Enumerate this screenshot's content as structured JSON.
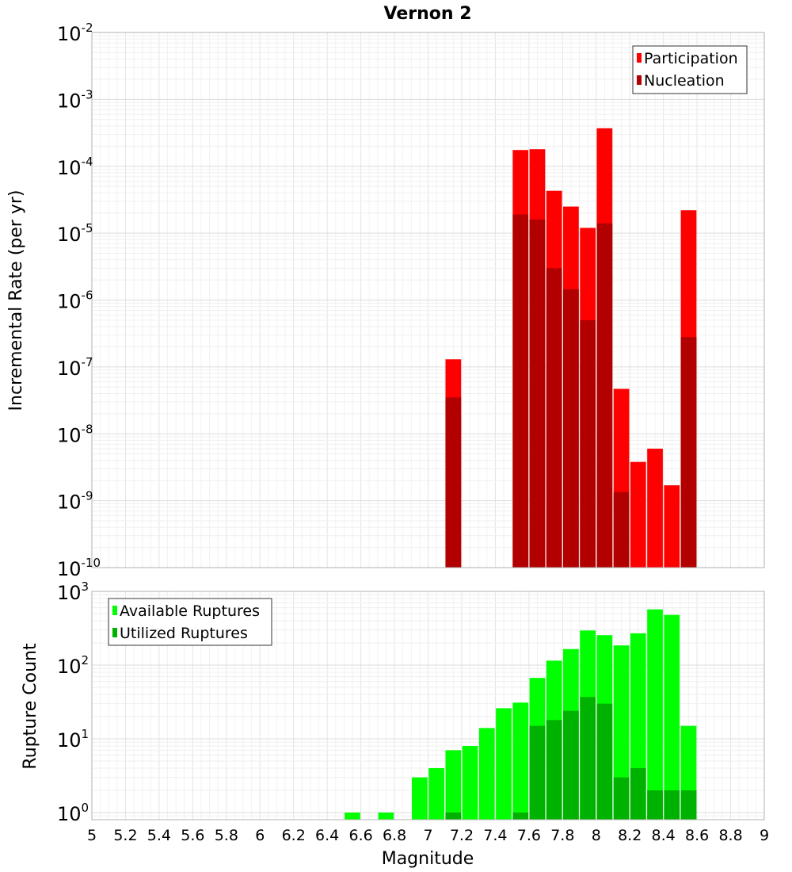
{
  "chart_data": [
    {
      "type": "bar",
      "title": "Vernon 2",
      "ylabel": "Incremental Rate (per yr)",
      "yscale": "log",
      "ylim": [
        1e-10,
        0.01
      ],
      "xlim": [
        5,
        9
      ],
      "grid": true,
      "legend_position": "top-right",
      "x": [
        7.15,
        7.55,
        7.65,
        7.75,
        7.85,
        7.95,
        8.05,
        8.15,
        8.25,
        8.35,
        8.45,
        8.55
      ],
      "y_tick_labels": [
        {
          "base": "10",
          "exp": "-10"
        },
        {
          "base": "10",
          "exp": "-9"
        },
        {
          "base": "10",
          "exp": "-8"
        },
        {
          "base": "10",
          "exp": "-7"
        },
        {
          "base": "10",
          "exp": "-6"
        },
        {
          "base": "10",
          "exp": "-5"
        },
        {
          "base": "10",
          "exp": "-4"
        },
        {
          "base": "10",
          "exp": "-3"
        },
        {
          "base": "10",
          "exp": "-2"
        }
      ],
      "series": [
        {
          "name": "Participation",
          "color": "#ff0000",
          "values": [
            1.3e-07,
            0.000175,
            0.00018,
            4.3e-05,
            2.5e-05,
            1.2e-05,
            0.00037,
            4.7e-08,
            3.8e-09,
            6e-09,
            1.7e-09,
            2.2e-05
          ]
        },
        {
          "name": "Nucleation",
          "color": "#b20000",
          "values": [
            3.5e-08,
            1.9e-05,
            1.6e-05,
            3e-06,
            1.45e-06,
            5e-07,
            1.4e-05,
            1.35e-09,
            null,
            null,
            null,
            2.8e-07
          ]
        }
      ]
    },
    {
      "type": "bar",
      "xlabel": "Magnitude",
      "ylabel": "Rupture Count",
      "yscale": "log",
      "ylim": [
        0.8,
        1000
      ],
      "xlim": [
        5,
        9
      ],
      "grid": true,
      "legend_position": "top-left",
      "x_tick_labels": [
        "5",
        "5.2",
        "5.4",
        "5.6",
        "5.8",
        "6",
        "6.2",
        "6.4",
        "6.6",
        "6.8",
        "7",
        "7.2",
        "7.4",
        "7.6",
        "7.8",
        "8",
        "8.2",
        "8.4",
        "8.6",
        "8.8",
        "9"
      ],
      "y_tick_labels": [
        {
          "base": "10",
          "exp": "0"
        },
        {
          "base": "10",
          "exp": "1"
        },
        {
          "base": "10",
          "exp": "2"
        },
        {
          "base": "10",
          "exp": "3"
        }
      ],
      "x": [
        6.55,
        6.75,
        6.95,
        7.05,
        7.15,
        7.25,
        7.35,
        7.45,
        7.55,
        7.65,
        7.75,
        7.85,
        7.95,
        8.05,
        8.15,
        8.25,
        8.35,
        8.45,
        8.55
      ],
      "series": [
        {
          "name": "Available Ruptures",
          "color": "#00ff00",
          "values": [
            1,
            1,
            3,
            4,
            7,
            8,
            14,
            26,
            31,
            67,
            115,
            165,
            295,
            255,
            185,
            270,
            570,
            480,
            15
          ]
        },
        {
          "name": "Utilized Ruptures",
          "color": "#00b200",
          "values": [
            null,
            null,
            null,
            null,
            1,
            null,
            null,
            null,
            1,
            15,
            18,
            24,
            37,
            30,
            3,
            4,
            2,
            2,
            2
          ]
        }
      ]
    }
  ]
}
